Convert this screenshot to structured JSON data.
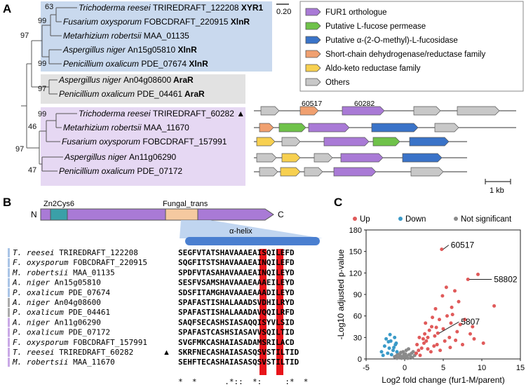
{
  "panels": {
    "A": "A",
    "B": "B",
    "C": "C"
  },
  "tree": {
    "scale_label": "0.20",
    "leaves": [
      {
        "genus": "Trichoderma reesei",
        "id": "TRIREDRAFT_122208",
        "tf": "XYR1",
        "group": "xlnr"
      },
      {
        "genus": "Fusarium oxysporum",
        "id": "FOBCDRAFT_220915",
        "tf": "XlnR",
        "group": "xlnr"
      },
      {
        "genus": "Metarhizium robertsii",
        "id": "MAA_01135",
        "tf": "",
        "group": "xlnr"
      },
      {
        "genus": "Aspergillus niger",
        "id": "An15g05810",
        "tf": "XlnR",
        "group": "xlnr"
      },
      {
        "genus": "Penicillium oxalicum",
        "id": "PDE_07674",
        "tf": "XlnR",
        "group": "xlnr"
      },
      {
        "genus": "Aspergillus niger",
        "id": "An04g08600",
        "tf": "AraR",
        "group": "arar"
      },
      {
        "genus": "Penicillium oxalicum",
        "id": "PDE_04461",
        "tf": "AraR",
        "group": "arar"
      },
      {
        "genus": "Trichoderma reesei",
        "id": "TRIREDRAFT_60282",
        "tf": "",
        "group": "fur1",
        "marker": "▲"
      },
      {
        "genus": "Metarhizium robertsii",
        "id": "MAA_11670",
        "tf": "",
        "group": "fur1"
      },
      {
        "genus": "Fusarium oxysporum",
        "id": "FOBCDRAFT_157991",
        "tf": "",
        "group": "fur1"
      },
      {
        "genus": "Aspergillus niger",
        "id": "An11g06290",
        "tf": "",
        "group": "fur1"
      },
      {
        "genus": "Penicillium oxalicum",
        "id": "PDE_07172",
        "tf": "",
        "group": "fur1"
      }
    ],
    "bootstraps": [
      "63",
      "99",
      "97",
      "99",
      "97",
      "99",
      "46",
      "97",
      "47"
    ]
  },
  "legend": [
    {
      "label": "FUR1 orthologue",
      "color": "#a97ad6"
    },
    {
      "label": "Putative L-fucose permease",
      "color": "#6fc24a"
    },
    {
      "label": "Putative α-(2-O-methyl)-L-fucosidase",
      "color": "#3a73c8"
    },
    {
      "label": "Short-chain dehydrogenase/reductase family",
      "color": "#f0a070"
    },
    {
      "label": "Aldo-keto reductase family",
      "color": "#f7d050"
    },
    {
      "label": "Others",
      "color": "#c8c8c8"
    }
  ],
  "gene_labels": {
    "g1": "60517",
    "g2": "60282"
  },
  "kb_label": "1 kb",
  "domain_map": {
    "n_label": "N",
    "c_label": "C",
    "zn_label": "Zn2Cys6",
    "fungal_label": "Fungal_trans",
    "helix_label": "α-helix"
  },
  "alignment": {
    "rows": [
      {
        "sp": "T. reesei",
        "id": "TRIREDRAFT_122208",
        "seq": "SEGFVTATSHAVAAAEAISQILEFD",
        "grp": "xlnr"
      },
      {
        "sp": "F. oxysporum",
        "id": "FOBCDRAFT_220915",
        "seq": "SQGFITSTSHAVAAAEAINQILEFD",
        "grp": "xlnr"
      },
      {
        "sp": "M. robertsii",
        "id": "MAA_01135",
        "seq": "SPDFVTASAHAVAAAEAINQILEYD",
        "grp": "xlnr"
      },
      {
        "sp": "A. niger",
        "id": "An15g05810",
        "seq": "SESFVSAMSHAVAAAEAAAEILEYD",
        "grp": "xlnr"
      },
      {
        "sp": "P. oxalicum",
        "id": "PDE_07674",
        "seq": "SDSFITAMGHAVAAAEAAADILEYD",
        "grp": "xlnr"
      },
      {
        "sp": "A. niger",
        "id": "An04g08600",
        "seq": "SPAFASTISHALAAADSVDHILRYD",
        "grp": "arar"
      },
      {
        "sp": "P. oxalicum",
        "id": "PDE_04461",
        "seq": "SPAFASTISHALAAADAVQQILRFD",
        "grp": "arar"
      },
      {
        "sp": "A. niger",
        "id": "An11g06290",
        "seq": "SAQFSECASHSIASAQQISYVLSID",
        "grp": "fur1"
      },
      {
        "sp": "P. oxalicum",
        "id": "PDE_07172",
        "seq": "SPAFASTCASHSIASAVVSQILTID",
        "grp": "fur1"
      },
      {
        "sp": "F. oxysporum",
        "id": "FOBCDRAFT_157991",
        "seq": "SVGFMKCASHAIASADAMSRILACD",
        "grp": "fur1"
      },
      {
        "sp": "T. reesei",
        "id": "TRIREDRAFT_60282",
        "seq": "SKRFNECASHAIASASQSVSTILTID",
        "grp": "fur1",
        "marker": "▲"
      },
      {
        "sp": "M. robertsii",
        "id": "MAA_11670",
        "seq": "SEHFTECASHAIASASQSVSTILTID",
        "grp": "fur1"
      }
    ],
    "conservation": "*  *      .*::  *:     :*  *"
  },
  "chart_data": {
    "type": "scatter",
    "xlabel": "Log2 fold change (fur1-M/parent)",
    "ylabel": "-Log10 adjusted p-value",
    "xlim": [
      -5,
      15
    ],
    "ylim": [
      0,
      180
    ],
    "xticks": [
      -5,
      0,
      5,
      10,
      15
    ],
    "yticks": [
      0,
      30,
      60,
      90,
      120,
      150,
      180
    ],
    "grid": false,
    "legend_position": "top",
    "series": [
      {
        "name": "Up",
        "color": "#e05a5a",
        "points": [
          [
            4.8,
            153
          ],
          [
            8.2,
            111
          ],
          [
            9.5,
            118
          ],
          [
            4.3,
            36
          ],
          [
            6.5,
            95
          ],
          [
            7.0,
            80
          ],
          [
            11.6,
            74
          ],
          [
            5.5,
            60
          ],
          [
            6.0,
            50
          ],
          [
            4.0,
            70
          ],
          [
            3.5,
            45
          ],
          [
            3.0,
            30
          ],
          [
            2.8,
            25
          ],
          [
            2.5,
            22
          ],
          [
            3.2,
            40
          ],
          [
            5.0,
            42
          ],
          [
            4.5,
            55
          ],
          [
            6.2,
            62
          ],
          [
            7.2,
            48
          ],
          [
            5.8,
            30
          ],
          [
            3.8,
            18
          ],
          [
            2.2,
            15
          ],
          [
            1.8,
            12
          ],
          [
            1.5,
            8
          ],
          [
            2.0,
            5
          ],
          [
            3.4,
            10
          ],
          [
            4.2,
            20
          ],
          [
            5.2,
            25
          ],
          [
            6.8,
            38
          ],
          [
            7.8,
            55
          ],
          [
            8.5,
            35
          ],
          [
            9.0,
            28
          ],
          [
            10.2,
            22
          ],
          [
            2.6,
            35
          ],
          [
            3.6,
            58
          ],
          [
            4.9,
            88
          ],
          [
            5.4,
            100
          ],
          [
            6.1,
            72
          ],
          [
            1.6,
            20
          ],
          [
            2.4,
            28
          ],
          [
            3.0,
            14
          ],
          [
            4.6,
            12
          ],
          [
            5.9,
            16
          ],
          [
            1.9,
            30
          ],
          [
            2.7,
            50
          ],
          [
            7.5,
            20
          ],
          [
            8.8,
            45
          ],
          [
            6.6,
            26
          ],
          [
            3.9,
            32
          ],
          [
            4.1,
            44
          ]
        ]
      },
      {
        "name": "Down",
        "color": "#3a9ac8",
        "points": [
          [
            -1.2,
            20
          ],
          [
            -1.5,
            12
          ],
          [
            -2.0,
            15
          ],
          [
            -1.8,
            25
          ],
          [
            -2.2,
            8
          ],
          [
            -1.3,
            30
          ],
          [
            -2.6,
            18
          ],
          [
            -1.0,
            10
          ],
          [
            -1.7,
            6
          ],
          [
            -2.4,
            28
          ],
          [
            -3.0,
            10
          ],
          [
            -1.1,
            22
          ],
          [
            -1.9,
            34
          ],
          [
            -2.8,
            5
          ],
          [
            -1.4,
            16
          ],
          [
            -2.1,
            24
          ]
        ]
      },
      {
        "name": "Not significant",
        "color": "#8a8a8a",
        "points": [
          [
            0,
            2
          ],
          [
            0.3,
            4
          ],
          [
            -0.3,
            3
          ],
          [
            0.6,
            6
          ],
          [
            -0.6,
            5
          ],
          [
            0.9,
            8
          ],
          [
            -0.9,
            7
          ],
          [
            1.1,
            10
          ],
          [
            -1.1,
            4
          ],
          [
            0.2,
            12
          ],
          [
            -0.2,
            10
          ],
          [
            0.5,
            14
          ],
          [
            -0.5,
            9
          ],
          [
            0.8,
            3
          ],
          [
            -0.8,
            2
          ],
          [
            1.3,
            5
          ],
          [
            -1.3,
            3
          ],
          [
            0.1,
            7
          ],
          [
            -0.1,
            6
          ],
          [
            0.4,
            1
          ],
          [
            -0.4,
            1
          ],
          [
            1.0,
            2
          ],
          [
            -1.0,
            1
          ]
        ]
      }
    ],
    "annotations": [
      {
        "label": "60517",
        "x": 4.8,
        "y": 153
      },
      {
        "label": "58802",
        "x": 8.2,
        "y": 111
      },
      {
        "label": "5807",
        "x": 4.3,
        "y": 36
      }
    ]
  }
}
